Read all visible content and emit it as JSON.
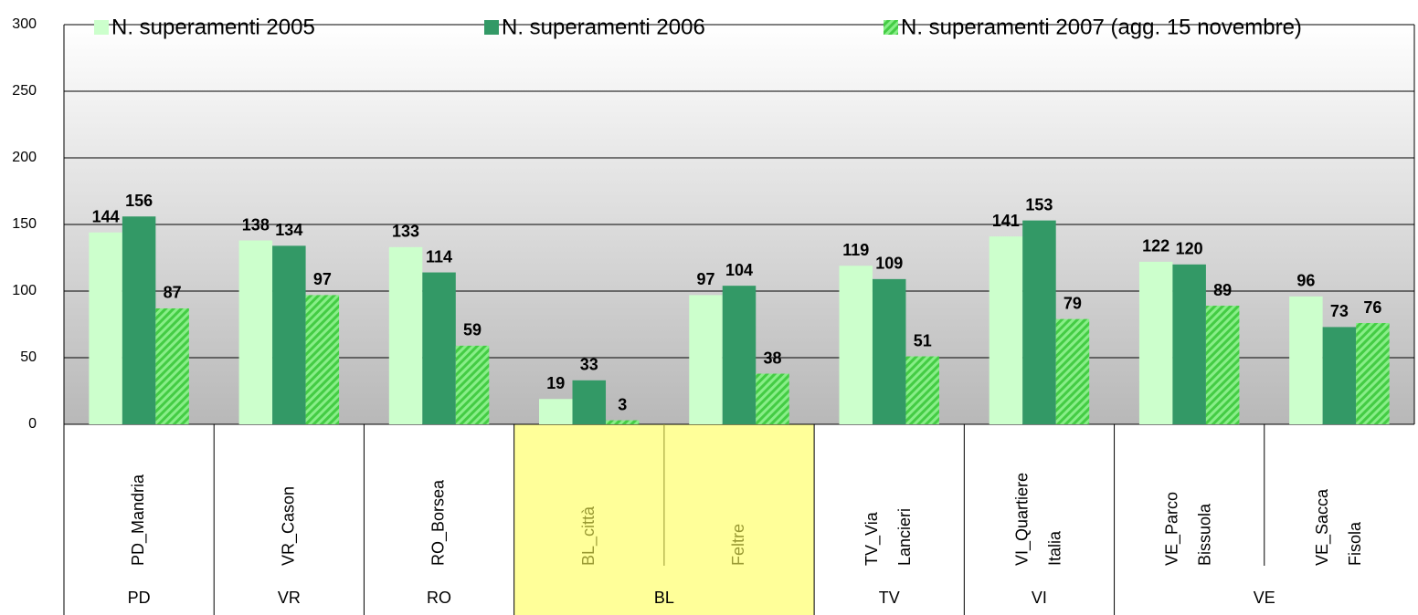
{
  "chart_data": {
    "type": "bar",
    "categories": [
      "PD_Mandria",
      "VR_Cason",
      "RO_Borsea",
      "BL_città",
      "Feltre",
      "TV_Via\nLancieri",
      "VI_Quartiere\nItalia",
      "VE_Parco\nBissuola",
      "VE_Sacca\nFisola"
    ],
    "groups": [
      {
        "label": "PD",
        "size": 1
      },
      {
        "label": "VR",
        "size": 1
      },
      {
        "label": "RO",
        "size": 1
      },
      {
        "label": "BL",
        "size": 2,
        "highlight": true
      },
      {
        "label": "TV",
        "size": 1
      },
      {
        "label": "VI",
        "size": 1
      },
      {
        "label": "VE",
        "size": 2
      }
    ],
    "series": [
      {
        "name": "N. superamenti 2005",
        "color": "#ccffcc",
        "values": [
          144,
          138,
          133,
          19,
          97,
          119,
          141,
          122,
          96
        ]
      },
      {
        "name": "N. superamenti 2006",
        "color": "#339966",
        "values": [
          156,
          134,
          114,
          33,
          104,
          109,
          153,
          120,
          73
        ]
      },
      {
        "name": "N. superamenti 2007 (agg. 15 novembre)",
        "color": "#55dd55",
        "pattern": "hatch",
        "values": [
          87,
          97,
          59,
          3,
          38,
          51,
          79,
          89,
          76
        ]
      }
    ],
    "ylim": [
      0,
      300
    ],
    "yticks": [
      0,
      50,
      100,
      150,
      200,
      250,
      300
    ],
    "grid": true,
    "legend": "top"
  }
}
